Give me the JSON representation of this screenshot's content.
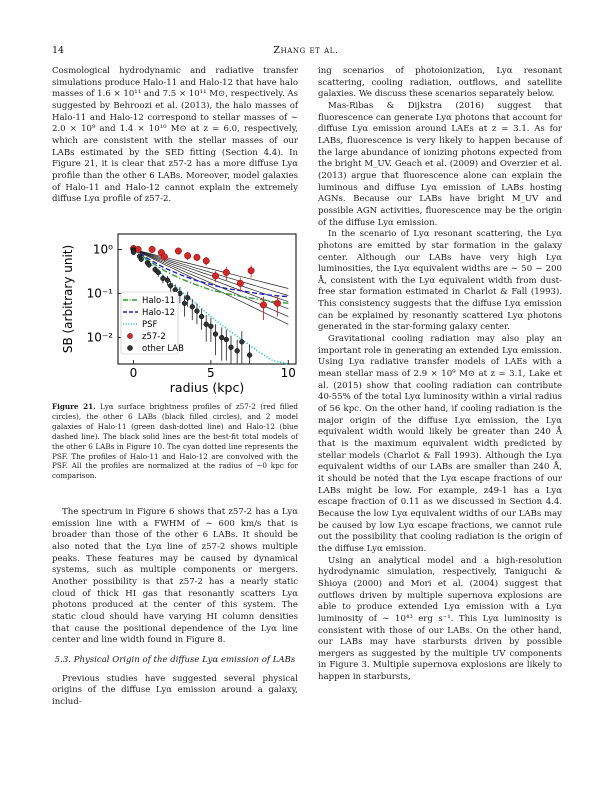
{
  "header": {
    "page_number": "14",
    "running_title": "Zhang et al."
  },
  "left_column": {
    "intro_paragraph": "Cosmological hydrodynamic and radiative transfer simulations produce Halo-11 and Halo-12 that have halo masses of 1.6 × 10¹¹ and 7.5 × 10¹¹ M⊙, respectively. As suggested by Behroozi et al. (2013), the halo masses of Halo-11 and Halo-12 correspond to stellar masses of ∼ 2.0 × 10⁹ and 1.4 × 10¹⁰ M⊙ at z = 6.0, respectively, which are consistent with the stellar masses of our LABs estimated by the SED fitting (Section 4.4). In Figure 21, it is clear that z57-2 has a more diffuse Lyα profile than the other 6 LABs. Moreover, model galaxies of Halo-11 and Halo-12 cannot explain the extremely diffuse Lyα profile of z57-2.",
    "caption_label": "Figure 21.",
    "caption_text": "Lyα surface brightness profiles of z57-2 (red filled circles), the other 6 LABs (black filled circles), and 2 model galaxies of Halo-11 (green dash-dotted line) and Halo-12 (blue dashed line). The black solid lines are the best-fit total models of the other 6 LABs in Figure 10. The cyan dotted line represents the PSF. The profiles of Halo-11 and Halo-12 are convolved with the PSF. All the profiles are normalized at the radius of ∼0 kpc for comparison.",
    "spectrum_paragraph": "The spectrum in Figure 6 shows that z57-2 has a Lyα emission line with a FWHM of ∼ 600 km/s that is broader than those of the other 6 LABs. It should be also noted that the Lyα line of z57-2 shows multiple peaks. These features may be caused by dynamical systems, such as multiple components or mergers. Another possibility is that z57-2 has a nearly static cloud of thick HI gas that resonantly scatters Lyα photons produced at the center of this system. The static cloud should have varying HI column densities that cause the positional dependence of the Lyα line center and line width found in Figure 8.",
    "section_heading": "5.3. Physical Origin of the diffuse Lyα emission of LABs",
    "section_paragraph": "Previous studies have suggested several physical origins of the diffuse Lyα emission around a galaxy, includ-"
  },
  "right_column": {
    "p1": "ing scenarios of photoionization, Lyα resonant scattering, cooling radiation, outflows, and satellite galaxies. We discuss these scenarios separately below.",
    "p2": "Mas-Ribas & Dijkstra (2016) suggest that fluorescence can generate Lyα photons that account for diffuse Lyα emission around LAEs at z = 3.1. As for LABs, fluorescence is very likely to happen because of the large abundance of ionizing photons expected from the bright M_UV. Geach et al. (2009) and Overzier et al. (2013) argue that fluorescence alone can explain the luminous and diffuse Lyα emission of LABs hosting AGNs. Because our LABs have bright M_UV and possible AGN activities, fluorescence may be the origin of the diffuse Lyα emission.",
    "p3": "In the scenario of Lyα resonant scattering, the Lyα photons are emitted by star formation in the galaxy center. Although our LABs have very high Lyα luminosities, the Lyα equivalent widths are ∼ 50 − 200 Å, consistent with the Lyα equivalent width from dust-free star formation estimated in Charlot & Fall (1993). This consistency suggests that the diffuse Lyα emission can be explained by resonantly scattered Lyα photons generated in the star-forming galaxy center.",
    "p4": "Gravitational cooling radiation may also play an important role in generating an extended Lyα emission. Using Lyα radiative transfer models of LAEs with a mean stellar mass of 2.9 × 10⁹ M⊙ at z = 3.1, Lake et al. (2015) show that cooling radiation can contribute 40-55% of the total Lyα luminosity within a virial radius of 56 kpc. On the other hand, if cooling radiation is the major origin of the diffuse Lyα emission, the Lyα equivalent width would likely be greater than 240 Å that is the maximum equivalent width predicted by stellar models (Charlot & Fall 1993). Although the Lyα equivalent widths of our LABs are smaller than 240 Å, it should be noted that the Lyα escape fractions of our LABs might be low. For example, z49-1 has a Lyα escape fraction of 0.11 as we discussed in Section 4.4. Because the low Lyα equivalent widths of our LABs may be caused by low Lyα escape fractions, we cannot rule out the possibility that cooling radiation is the origin of the diffuse Lyα emission.",
    "p5": "Using an analytical model and a high-resolution hydrodynamic simulation, respectively, Taniguchi & Shioya (2000) and Mori et al. (2004) suggest that outflows driven by multiple supernova explosions are able to produce extended Lyα emission with a Lyα luminosity of ∼ 10⁴³ erg s⁻¹. This Lyα luminosity is consistent with those of our LABs. On the other hand, our LABs may have starbursts driven by possible mergers as suggested by the multiple UV components in Figure 3. Multiple supernova explosions are likely to happen in starbursts,"
  },
  "chart_data": {
    "type": "scatter",
    "title": "",
    "xlabel": "radius (kpc)",
    "ylabel": "SB (arbitrary unit)",
    "xlim": [
      -1,
      10.5
    ],
    "ylim_log10": [
      -2.6,
      0.35
    ],
    "y_scale": "log",
    "x_ticks": [
      "0",
      "5",
      "10"
    ],
    "y_ticks": [
      "10⁰",
      "10⁻¹",
      "10⁻²"
    ],
    "legend_position": "lower-left",
    "legend": [
      {
        "label": "Halo-11",
        "color": "#2ca02c",
        "style": "dash-dot"
      },
      {
        "label": "Halo-12",
        "color": "#1f1fd0",
        "style": "dashed"
      },
      {
        "label": "PSF",
        "color": "#17becf",
        "style": "dotted"
      },
      {
        "label": "z57-2",
        "color": "#d62728",
        "style": "marker"
      },
      {
        "label": "other LAB",
        "color": "#333333",
        "style": "marker"
      }
    ],
    "series": [
      {
        "name": "z57-2",
        "color": "#d62728",
        "x": [
          0,
          0.3,
          1.2,
          1.8,
          2.0,
          2.9,
          3.5,
          4.1,
          4.7,
          5.3,
          6.0,
          6.9,
          7.6,
          8.4,
          9.3
        ],
        "y": [
          1.05,
          1.0,
          1.0,
          0.85,
          0.68,
          0.92,
          0.72,
          0.66,
          0.55,
          0.25,
          0.3,
          0.17,
          0.33,
          0.055,
          0.06
        ],
        "err": [
          0.15,
          0.15,
          0.15,
          0.15,
          0.15,
          0.15,
          0.15,
          0.12,
          0.12,
          0.07,
          0.1,
          0.06,
          0.1,
          0.03,
          0.03
        ]
      },
      {
        "name": "other LAB",
        "color": "#333333",
        "x": [
          0,
          0,
          0,
          0.4,
          0.5,
          0.9,
          1.0,
          1.4,
          1.6,
          1.9,
          2.2,
          2.4,
          2.7,
          3.0,
          3.3,
          3.5,
          3.8,
          4.1,
          4.4,
          4.7,
          5.0,
          5.3,
          5.7,
          6.0,
          6.3,
          6.7,
          7.0,
          7.5
        ],
        "y": [
          1.0,
          0.92,
          0.86,
          0.7,
          0.6,
          0.5,
          0.45,
          0.35,
          0.3,
          0.22,
          0.2,
          0.15,
          0.12,
          0.1,
          0.06,
          0.08,
          0.05,
          0.04,
          0.03,
          0.02,
          0.018,
          0.012,
          0.01,
          0.009,
          0.006,
          0.005,
          0.008,
          0.004
        ],
        "err": [
          0.08,
          0.08,
          0.08,
          0.08,
          0.08,
          0.07,
          0.07,
          0.06,
          0.06,
          0.05,
          0.05,
          0.04,
          0.04,
          0.04,
          0.03,
          0.03,
          0.025,
          0.02,
          0.015,
          0.012,
          0.01,
          0.008,
          0.007,
          0.006,
          0.005,
          0.004,
          0.006,
          0.003
        ]
      }
    ],
    "model_lines": [
      {
        "name": "Halo-11",
        "color": "#2ca02c",
        "dash": "6,2,1.5,2",
        "x": [
          0,
          1,
          2,
          3,
          4,
          5,
          6,
          7,
          8,
          9,
          10
        ],
        "y": [
          1.0,
          0.55,
          0.33,
          0.22,
          0.16,
          0.12,
          0.1,
          0.085,
          0.075,
          0.065,
          0.06
        ]
      },
      {
        "name": "Halo-12",
        "color": "#1f1fd0",
        "dash": "5,2.5",
        "x": [
          0,
          1,
          2,
          3,
          4,
          5,
          6,
          7,
          8,
          9,
          10
        ],
        "y": [
          1.0,
          0.6,
          0.38,
          0.27,
          0.2,
          0.16,
          0.13,
          0.115,
          0.1,
          0.09,
          0.085
        ]
      },
      {
        "name": "PSF",
        "color": "#17becf",
        "dash": "1.2,1.8",
        "x": [
          0,
          1,
          2,
          3,
          4,
          5,
          6,
          7,
          8,
          9,
          10
        ],
        "y": [
          1.0,
          0.5,
          0.24,
          0.12,
          0.06,
          0.03,
          0.016,
          0.009,
          0.005,
          0.003,
          0.0025
        ]
      }
    ],
    "fit_lines": [
      {
        "y0": 1.0,
        "y10": 0.13
      },
      {
        "y0": 1.0,
        "y10": 0.09
      },
      {
        "y0": 1.0,
        "y10": 0.065
      },
      {
        "y0": 1.0,
        "y10": 0.045
      },
      {
        "y0": 1.0,
        "y10": 0.03
      },
      {
        "y0": 1.0,
        "y10": 0.02
      }
    ]
  }
}
